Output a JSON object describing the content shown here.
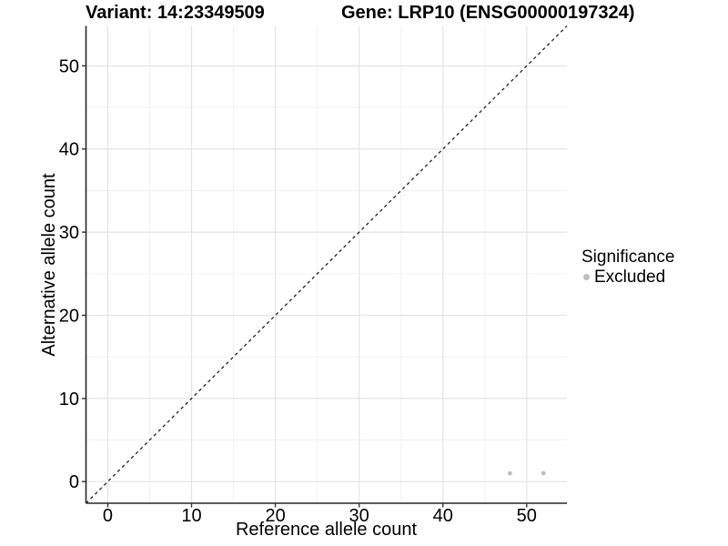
{
  "figure": {
    "title_left": "Variant: 14:23349509",
    "title_right": "Gene: LRP10 (ENSG00000197324)"
  },
  "legend": {
    "title": "Significance",
    "items": [
      {
        "label": "Excluded",
        "color": "#bebebe"
      }
    ]
  },
  "chart_data": {
    "type": "scatter",
    "title": "Variant: 14:23349509 / Gene: LRP10 (ENSG00000197324)",
    "xlabel": "Reference allele count",
    "ylabel": "Alternative allele count",
    "xlim": [
      -2.6,
      54.8
    ],
    "ylim": [
      -2.6,
      54.8
    ],
    "x_ticks": [
      0,
      10,
      20,
      30,
      40,
      50
    ],
    "y_ticks": [
      0,
      10,
      20,
      30,
      40,
      50
    ],
    "x_minor_ticks": [
      5,
      15,
      25,
      35,
      45
    ],
    "y_minor_ticks": [
      5,
      15,
      25,
      35,
      45
    ],
    "grid": true,
    "legend_position": "right",
    "reference_line": {
      "kind": "identity",
      "style": "dashed",
      "color": "#111111"
    },
    "series": [
      {
        "name": "Excluded",
        "color": "#bebebe",
        "marker": "circle",
        "points": [
          {
            "x": 48,
            "y": 1
          },
          {
            "x": 52,
            "y": 1
          }
        ]
      }
    ]
  },
  "colors": {
    "background": "#ffffff",
    "axis_line": "#262626",
    "tick_mark": "#333333",
    "grid_major": "#e4e4e4",
    "grid_minor": "#f1f1f1",
    "text": "#000000",
    "excluded_point": "#bebebe"
  }
}
